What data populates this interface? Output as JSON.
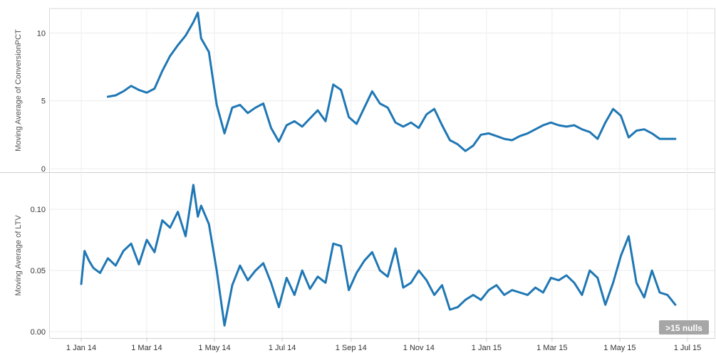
{
  "chart_data": [
    {
      "type": "line",
      "ylabel": "Moving Average of ConversionPCT",
      "ylim": [
        0,
        11.8
      ],
      "yticks": [
        "0",
        "5",
        "10"
      ],
      "ytick_values": [
        0,
        5,
        10
      ],
      "grid": true,
      "color": "#1f77b4",
      "series": [
        {
          "x": [
            "2014-01-25",
            "2014-02-01",
            "2014-02-08",
            "2014-02-15",
            "2014-02-22",
            "2014-03-01",
            "2014-03-08",
            "2014-03-15",
            "2014-03-22",
            "2014-03-29",
            "2014-04-05",
            "2014-04-12",
            "2014-04-16",
            "2014-04-19",
            "2014-04-26",
            "2014-05-03",
            "2014-05-10",
            "2014-05-17",
            "2014-05-24",
            "2014-05-31",
            "2014-06-07",
            "2014-06-14",
            "2014-06-21",
            "2014-06-28",
            "2014-07-05",
            "2014-07-12",
            "2014-07-19",
            "2014-07-26",
            "2014-08-02",
            "2014-08-09",
            "2014-08-16",
            "2014-08-23",
            "2014-08-30",
            "2014-09-06",
            "2014-09-13",
            "2014-09-20",
            "2014-09-27",
            "2014-10-04",
            "2014-10-11",
            "2014-10-18",
            "2014-10-25",
            "2014-11-01",
            "2014-11-08",
            "2014-11-15",
            "2014-11-22",
            "2014-11-29",
            "2014-12-06",
            "2014-12-13",
            "2014-12-20",
            "2014-12-27",
            "2015-01-03",
            "2015-01-10",
            "2015-01-17",
            "2015-01-24",
            "2015-01-31",
            "2015-02-07",
            "2015-02-14",
            "2015-02-21",
            "2015-02-28",
            "2015-03-07",
            "2015-03-14",
            "2015-03-21",
            "2015-03-28",
            "2015-04-04",
            "2015-04-11",
            "2015-04-18",
            "2015-04-25",
            "2015-05-02",
            "2015-05-09",
            "2015-05-16",
            "2015-05-23",
            "2015-05-30",
            "2015-06-06",
            "2015-06-13",
            "2015-06-20"
          ],
          "values": [
            5.3,
            5.4,
            5.7,
            6.1,
            5.8,
            5.6,
            5.9,
            7.2,
            8.3,
            9.1,
            9.8,
            10.8,
            11.5,
            9.6,
            8.6,
            4.7,
            2.6,
            4.5,
            4.7,
            4.1,
            4.5,
            4.8,
            3.0,
            2.0,
            3.2,
            3.5,
            3.1,
            3.7,
            4.3,
            3.5,
            6.2,
            5.8,
            3.8,
            3.3,
            4.5,
            5.7,
            4.8,
            4.5,
            3.4,
            3.1,
            3.4,
            3.0,
            4.0,
            4.4,
            3.2,
            2.1,
            1.8,
            1.3,
            1.7,
            2.5,
            2.6,
            2.4,
            2.2,
            2.1,
            2.4,
            2.6,
            2.9,
            3.2,
            3.4,
            3.2,
            3.1,
            3.2,
            2.9,
            2.7,
            2.2,
            3.4,
            4.4,
            3.9,
            2.3,
            2.8,
            2.9,
            2.6,
            2.2,
            2.2,
            2.2
          ]
        }
      ]
    },
    {
      "type": "line",
      "ylabel": "Moving Average of LTV",
      "ylim": [
        0,
        0.128
      ],
      "yticks": [
        "0.00",
        "0.05",
        "0.10"
      ],
      "ytick_values": [
        0,
        0.05,
        0.1
      ],
      "grid": true,
      "color": "#1f77b4",
      "xticks": [
        "1 Jan 14",
        "1 Mar 14",
        "1 May 14",
        "1 Jul 14",
        "1 Sep 14",
        "1 Nov 14",
        "1 Jan 15",
        "1 Mar 15",
        "1 May 15",
        "1 Jul 15"
      ],
      "xtick_dates": [
        "2014-01-01",
        "2014-03-01",
        "2014-05-01",
        "2014-07-01",
        "2014-09-01",
        "2014-11-01",
        "2015-01-01",
        "2015-03-01",
        "2015-05-01",
        "2015-07-01"
      ],
      "series": [
        {
          "x": [
            "2014-01-01",
            "2014-01-04",
            "2014-01-08",
            "2014-01-12",
            "2014-01-18",
            "2014-01-25",
            "2014-02-01",
            "2014-02-08",
            "2014-02-15",
            "2014-02-22",
            "2014-03-01",
            "2014-03-08",
            "2014-03-15",
            "2014-03-22",
            "2014-03-29",
            "2014-04-05",
            "2014-04-12",
            "2014-04-16",
            "2014-04-19",
            "2014-04-26",
            "2014-05-03",
            "2014-05-10",
            "2014-05-17",
            "2014-05-24",
            "2014-05-31",
            "2014-06-07",
            "2014-06-14",
            "2014-06-21",
            "2014-06-28",
            "2014-07-05",
            "2014-07-12",
            "2014-07-19",
            "2014-07-26",
            "2014-08-02",
            "2014-08-09",
            "2014-08-16",
            "2014-08-23",
            "2014-08-30",
            "2014-09-06",
            "2014-09-13",
            "2014-09-20",
            "2014-09-27",
            "2014-10-04",
            "2014-10-11",
            "2014-10-18",
            "2014-10-25",
            "2014-11-01",
            "2014-11-08",
            "2014-11-15",
            "2014-11-22",
            "2014-11-29",
            "2014-12-06",
            "2014-12-13",
            "2014-12-20",
            "2014-12-27",
            "2015-01-03",
            "2015-01-10",
            "2015-01-17",
            "2015-01-24",
            "2015-01-31",
            "2015-02-07",
            "2015-02-14",
            "2015-02-21",
            "2015-02-28",
            "2015-03-07",
            "2015-03-14",
            "2015-03-21",
            "2015-03-28",
            "2015-04-04",
            "2015-04-11",
            "2015-04-18",
            "2015-04-25",
            "2015-05-02",
            "2015-05-09",
            "2015-05-16",
            "2015-05-23",
            "2015-05-30",
            "2015-06-06",
            "2015-06-13",
            "2015-06-20"
          ],
          "values": [
            0.039,
            0.066,
            0.058,
            0.052,
            0.048,
            0.06,
            0.054,
            0.066,
            0.072,
            0.055,
            0.075,
            0.065,
            0.091,
            0.085,
            0.098,
            0.078,
            0.12,
            0.094,
            0.103,
            0.088,
            0.05,
            0.005,
            0.038,
            0.054,
            0.042,
            0.05,
            0.056,
            0.04,
            0.02,
            0.044,
            0.03,
            0.05,
            0.035,
            0.045,
            0.04,
            0.072,
            0.07,
            0.034,
            0.048,
            0.058,
            0.065,
            0.05,
            0.045,
            0.068,
            0.036,
            0.04,
            0.05,
            0.042,
            0.03,
            0.038,
            0.018,
            0.02,
            0.026,
            0.03,
            0.026,
            0.034,
            0.038,
            0.03,
            0.034,
            0.032,
            0.03,
            0.036,
            0.032,
            0.044,
            0.042,
            0.046,
            0.04,
            0.03,
            0.05,
            0.044,
            0.022,
            0.04,
            0.062,
            0.078,
            0.04,
            0.028,
            0.05,
            0.032,
            0.03,
            0.022
          ]
        }
      ]
    }
  ],
  "badge": {
    "text": ">15 nulls"
  }
}
